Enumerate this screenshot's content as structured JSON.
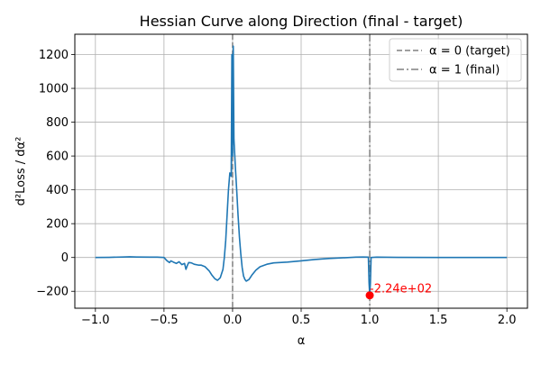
{
  "chart_data": {
    "type": "line",
    "title": "Hessian Curve along Direction (final - target)",
    "xlabel": "α",
    "ylabel": "d²Loss / dα²",
    "xlim": [
      -1.15,
      2.15
    ],
    "ylim": [
      -300,
      1320
    ],
    "x_ticks": [
      -1.0,
      -0.5,
      0.0,
      0.5,
      1.0,
      1.5,
      2.0
    ],
    "x_tick_labels": [
      "−1.0",
      "−0.5",
      "0.0",
      "0.5",
      "1.0",
      "1.5",
      "2.0"
    ],
    "y_ticks": [
      -200,
      0,
      200,
      400,
      600,
      800,
      1000,
      1200
    ],
    "y_tick_labels": [
      "−200",
      "0",
      "200",
      "400",
      "600",
      "800",
      "1000",
      "1200"
    ],
    "grid": true,
    "legend_position": "top-right",
    "series": [
      {
        "color": "#1f77b4",
        "points": [
          [
            -1.0,
            0
          ],
          [
            -0.9,
            1
          ],
          [
            -0.8,
            3
          ],
          [
            -0.75,
            4
          ],
          [
            -0.7,
            3
          ],
          [
            -0.6,
            2
          ],
          [
            -0.55,
            2
          ],
          [
            -0.5,
            0
          ],
          [
            -0.48,
            -18
          ],
          [
            -0.46,
            -30
          ],
          [
            -0.45,
            -20
          ],
          [
            -0.43,
            -28
          ],
          [
            -0.41,
            -35
          ],
          [
            -0.39,
            -25
          ],
          [
            -0.37,
            -42
          ],
          [
            -0.35,
            -35
          ],
          [
            -0.34,
            -70
          ],
          [
            -0.33,
            -48
          ],
          [
            -0.32,
            -30
          ],
          [
            -0.3,
            -32
          ],
          [
            -0.28,
            -40
          ],
          [
            -0.25,
            -45
          ],
          [
            -0.23,
            -45
          ],
          [
            -0.2,
            -55
          ],
          [
            -0.17,
            -80
          ],
          [
            -0.15,
            -105
          ],
          [
            -0.13,
            -125
          ],
          [
            -0.11,
            -135
          ],
          [
            -0.09,
            -120
          ],
          [
            -0.07,
            -70
          ],
          [
            -0.06,
            0
          ],
          [
            -0.05,
            100
          ],
          [
            -0.04,
            250
          ],
          [
            -0.03,
            400
          ],
          [
            -0.02,
            500
          ],
          [
            -0.01,
            480
          ],
          [
            -0.005,
            1200
          ],
          [
            0.0,
            600
          ],
          [
            0.005,
            1250
          ],
          [
            0.01,
            700
          ],
          [
            0.02,
            540
          ],
          [
            0.03,
            400
          ],
          [
            0.04,
            250
          ],
          [
            0.05,
            120
          ],
          [
            0.06,
            20
          ],
          [
            0.07,
            -60
          ],
          [
            0.08,
            -110
          ],
          [
            0.09,
            -130
          ],
          [
            0.1,
            -140
          ],
          [
            0.12,
            -130
          ],
          [
            0.14,
            -105
          ],
          [
            0.17,
            -75
          ],
          [
            0.2,
            -55
          ],
          [
            0.25,
            -40
          ],
          [
            0.3,
            -32
          ],
          [
            0.4,
            -27
          ],
          [
            0.5,
            -20
          ],
          [
            0.6,
            -12
          ],
          [
            0.7,
            -6
          ],
          [
            0.8,
            -2
          ],
          [
            0.9,
            2
          ],
          [
            0.95,
            3
          ],
          [
            0.99,
            2
          ],
          [
            0.995,
            -150
          ],
          [
            1.0,
            -224
          ],
          [
            1.005,
            -150
          ],
          [
            1.01,
            0
          ],
          [
            1.05,
            2
          ],
          [
            1.2,
            1
          ],
          [
            1.5,
            0
          ],
          [
            2.0,
            0
          ]
        ]
      }
    ],
    "vlines": [
      {
        "x": 0,
        "style": "dashed",
        "color": "#808080",
        "label": "α = 0 (target)"
      },
      {
        "x": 1,
        "style": "dashdot",
        "color": "#808080",
        "label": "α = 1 (final)"
      }
    ],
    "marker": {
      "x": 1.0,
      "y": -224,
      "color": "#ff0000",
      "label": "-2.24e+02"
    }
  }
}
